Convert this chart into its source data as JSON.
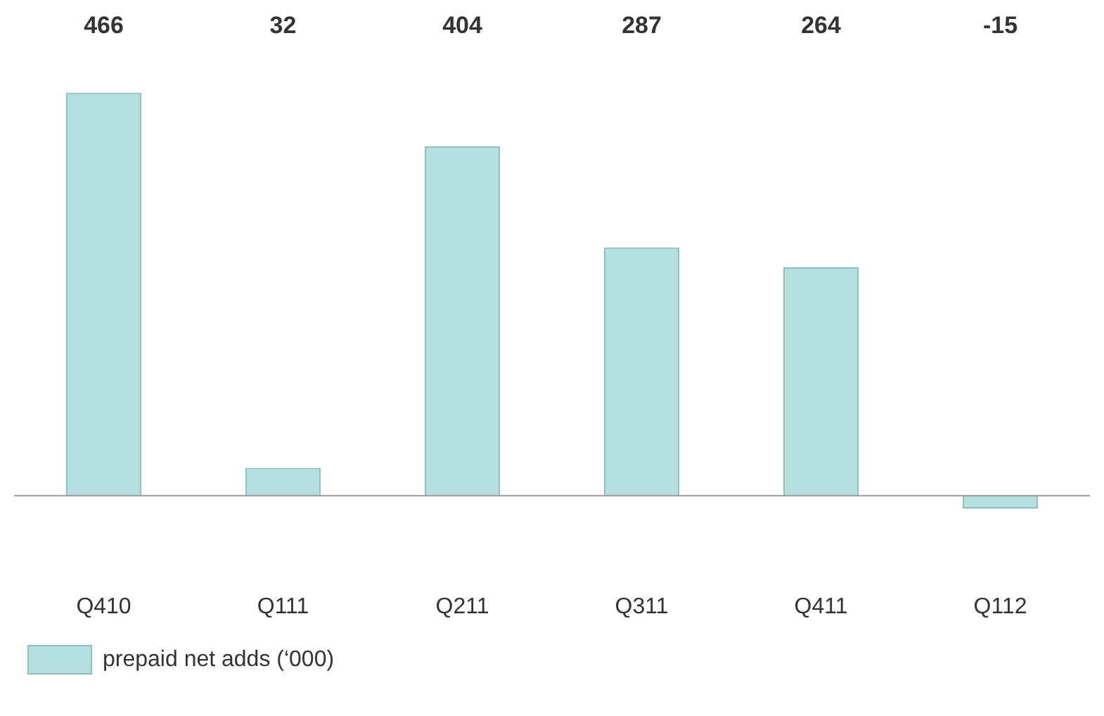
{
  "chart_data": {
    "type": "bar",
    "categories": [
      "Q410",
      "Q111",
      "Q211",
      "Q311",
      "Q411",
      "Q112"
    ],
    "series": [
      {
        "name": "prepaid net adds (‘000)",
        "color": "#b6e0e0",
        "values": [
          466,
          32,
          404,
          287,
          264,
          -15
        ]
      }
    ],
    "data_labels": true,
    "grid": false,
    "legend": "bottom"
  }
}
